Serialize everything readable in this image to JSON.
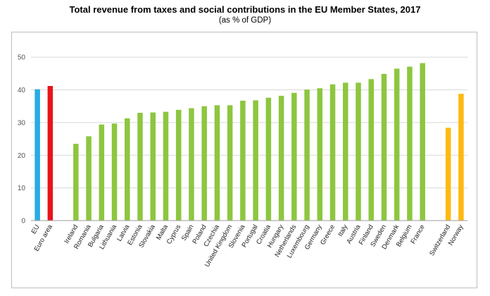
{
  "chart_data": {
    "type": "bar",
    "title": "Total revenue from taxes and social contributions in the EU Member States, 2017",
    "subtitle": "(as % of GDP)",
    "xlabel": "",
    "ylabel": "",
    "ylim": [
      0,
      55
    ],
    "yticks": [
      0,
      10,
      20,
      30,
      40,
      50
    ],
    "grid": "horizontal",
    "legend": "none",
    "categories": [
      "EU",
      "Euro area",
      "",
      "Ireland",
      "Romania",
      "Bulgaria",
      "Lithuania",
      "Latvia",
      "Estonia",
      "Slovakia",
      "Malta",
      "Cyprus",
      "Spain",
      "Poland",
      "Czechia",
      "United Kingdom",
      "Slovenia",
      "Portugal",
      "Croatia",
      "Hungary",
      "Netherlands",
      "Luxembourg",
      "Germany",
      "Greece",
      "Italy",
      "Austria",
      "Finland",
      "Sweden",
      "Denmark",
      "Belgium",
      "France",
      "",
      "Switzerland",
      "Norway"
    ],
    "values": [
      40.2,
      41.2,
      null,
      23.5,
      25.8,
      29.4,
      29.7,
      31.3,
      33.0,
      33.1,
      33.3,
      33.9,
      34.4,
      35.0,
      35.3,
      35.3,
      36.7,
      36.8,
      37.6,
      38.2,
      39.1,
      40.1,
      40.5,
      41.7,
      42.2,
      42.2,
      43.3,
      44.9,
      46.5,
      47.1,
      48.2,
      null,
      28.4,
      38.8
    ],
    "colors": [
      "#29ABE2",
      "#E8141B",
      "",
      "#8DC63F",
      "#8DC63F",
      "#8DC63F",
      "#8DC63F",
      "#8DC63F",
      "#8DC63F",
      "#8DC63F",
      "#8DC63F",
      "#8DC63F",
      "#8DC63F",
      "#8DC63F",
      "#8DC63F",
      "#8DC63F",
      "#8DC63F",
      "#8DC63F",
      "#8DC63F",
      "#8DC63F",
      "#8DC63F",
      "#8DC63F",
      "#8DC63F",
      "#8DC63F",
      "#8DC63F",
      "#8DC63F",
      "#8DC63F",
      "#8DC63F",
      "#8DC63F",
      "#8DC63F",
      "#8DC63F",
      "",
      "#FDB913",
      "#FDB913"
    ]
  }
}
